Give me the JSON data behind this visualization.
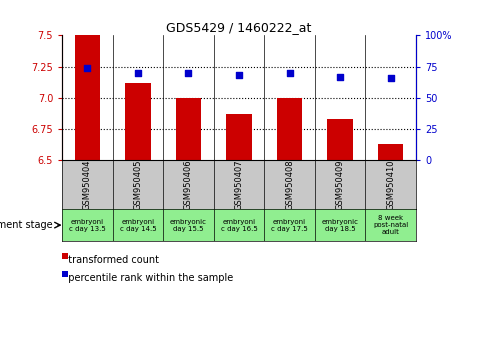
{
  "title": "GDS5429 / 1460222_at",
  "samples": [
    "GSM950404",
    "GSM950405",
    "GSM950406",
    "GSM950407",
    "GSM950408",
    "GSM950409",
    "GSM950410"
  ],
  "bar_values": [
    7.5,
    7.12,
    7.0,
    6.875,
    7.0,
    6.83,
    6.63
  ],
  "scatter_values": [
    74,
    70,
    70,
    68.5,
    70,
    67,
    66
  ],
  "bar_bottom": 6.5,
  "ylim_left": [
    6.5,
    7.5
  ],
  "ylim_right": [
    0,
    100
  ],
  "yticks_left": [
    6.5,
    6.75,
    7.0,
    7.25,
    7.5
  ],
  "yticks_right": [
    0,
    25,
    50,
    75,
    100
  ],
  "bar_color": "#cc0000",
  "scatter_color": "#0000cc",
  "stage_labels": [
    "embryoni\nc day 13.5",
    "embryoni\nc day 14.5",
    "embryonic\nday 15.5",
    "embryoni\nc day 16.5",
    "embryoni\nc day 17.5",
    "embryonic\nday 18.5",
    "8 week\npost-natal\nadult"
  ],
  "xlabel_label": "development stage",
  "legend_bar": "transformed count",
  "legend_scatter": "percentile rank within the sample",
  "hlines": [
    6.75,
    7.0,
    7.25
  ],
  "tick_color_left": "#cc0000",
  "tick_color_right": "#0000cc",
  "gray_color": "#c8c8c8",
  "green_color": "#90ee90"
}
